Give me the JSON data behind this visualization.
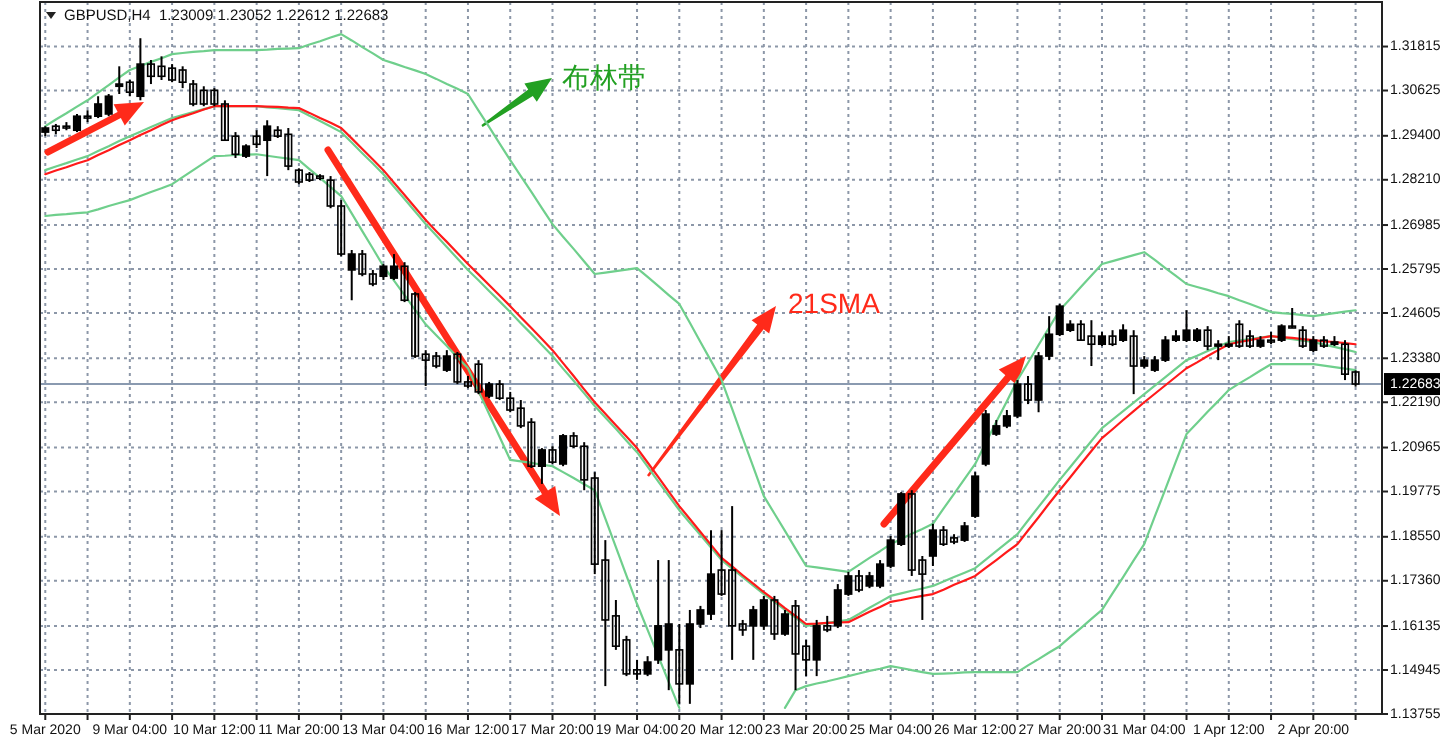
{
  "chart_data": {
    "type": "candlestick",
    "title": "GBPUSD,H4  1.23009 1.23052 1.22612 1.22683",
    "categories": [
      "5 Mar 2020",
      null,
      null,
      null,
      null,
      null,
      null,
      null,
      "9 Mar 04:00",
      null,
      null,
      null,
      null,
      null,
      null,
      null,
      "10 Mar 12:00",
      null,
      null,
      null,
      null,
      null,
      null,
      null,
      "11 Mar 20:00",
      null,
      null,
      null,
      null,
      null,
      null,
      null,
      "13 Mar 04:00",
      null,
      null,
      null,
      null,
      null,
      null,
      null,
      "16 Mar 12:00",
      null,
      null,
      null,
      null,
      null,
      null,
      null,
      "17 Mar 20:00",
      null,
      null,
      null,
      null,
      null,
      null,
      null,
      "19 Mar 04:00",
      null,
      null,
      null,
      null,
      null,
      null,
      null,
      "20 Mar 12:00",
      null,
      null,
      null,
      null,
      null,
      null,
      null,
      "23 Mar 20:00",
      null,
      null,
      null,
      null,
      null,
      null,
      null,
      "25 Mar 04:00",
      null,
      null,
      null,
      null,
      null,
      null,
      null,
      "26 Mar 12:00",
      null,
      null,
      null,
      null,
      null,
      null,
      null,
      "27 Mar 20:00",
      null,
      null,
      null,
      null,
      null,
      null,
      null,
      "31 Mar 04:00",
      null,
      null,
      null,
      null,
      null,
      null,
      null,
      "1 Apr 12:00",
      null,
      null,
      null,
      null,
      null,
      null,
      null,
      "2 Apr 20:00",
      null,
      null,
      null,
      null,
      null,
      null
    ],
    "ohlc": [
      [
        1.295,
        1.2966,
        1.2939,
        1.2961
      ],
      [
        1.2966,
        1.2972,
        1.2944,
        1.2955
      ],
      [
        1.2966,
        1.2977,
        1.2955,
        1.2961
      ],
      [
        1.2955,
        1.2999,
        1.295,
        1.2993
      ],
      [
        1.2993,
        1.3009,
        1.2977,
        1.2988
      ],
      [
        1.2993,
        1.3047,
        1.2988,
        1.3026
      ],
      [
        1.2999,
        1.3053,
        1.2993,
        1.3047
      ],
      [
        1.3074,
        1.3128,
        1.3053,
        1.308
      ],
      [
        1.3085,
        1.3091,
        1.3047,
        1.3058
      ],
      [
        1.3047,
        1.3204,
        1.3036,
        1.3134
      ],
      [
        1.3134,
        1.3145,
        1.308,
        1.3101
      ],
      [
        1.3128,
        1.3155,
        1.3091,
        1.3101
      ],
      [
        1.3123,
        1.3134,
        1.3085,
        1.3091
      ],
      [
        1.3118,
        1.3128,
        1.3069,
        1.3085
      ],
      [
        1.308,
        1.3091,
        1.302,
        1.3026
      ],
      [
        1.3063,
        1.3074,
        1.302,
        1.3026
      ],
      [
        1.3063,
        1.3069,
        1.302,
        1.3026
      ],
      [
        1.3026,
        1.3036,
        1.2928,
        1.2928
      ],
      [
        1.2939,
        1.295,
        1.288,
        1.289
      ],
      [
        1.2885,
        1.2917,
        1.288,
        1.2912
      ],
      [
        1.2939,
        1.2955,
        1.2907,
        1.2917
      ],
      [
        1.2928,
        1.2982,
        1.2831,
        1.2966
      ],
      [
        1.2955,
        1.2966,
        1.2934,
        1.2939
      ],
      [
        1.2944,
        1.2961,
        1.2847,
        1.2858
      ],
      [
        1.2847,
        1.2852,
        1.2809,
        1.2815
      ],
      [
        1.2836,
        1.2842,
        1.2815,
        1.282
      ],
      [
        1.2831,
        1.2836,
        1.282,
        1.2825
      ],
      [
        1.282,
        1.2831,
        1.2744,
        1.275
      ],
      [
        1.275,
        1.2766,
        1.2614,
        1.262
      ],
      [
        1.2577,
        1.2631,
        1.2495,
        1.262
      ],
      [
        1.262,
        1.2631,
        1.256,
        1.2566
      ],
      [
        1.2566,
        1.2577,
        1.2533,
        1.2539
      ],
      [
        1.256,
        1.2593,
        1.255,
        1.2587
      ],
      [
        1.2555,
        1.262,
        1.255,
        1.2587
      ],
      [
        1.2587,
        1.2598,
        1.249,
        1.2495
      ],
      [
        1.2512,
        1.2517,
        1.2339,
        1.2344
      ],
      [
        1.2349,
        1.236,
        1.2263,
        1.2333
      ],
      [
        1.2344,
        1.2355,
        1.2311,
        1.2317
      ],
      [
        1.2306,
        1.236,
        1.2301,
        1.2344
      ],
      [
        1.2349,
        1.2355,
        1.2268,
        1.2274
      ],
      [
        1.2274,
        1.229,
        1.2257,
        1.2263
      ],
      [
        1.2322,
        1.2333,
        1.2241,
        1.2247
      ],
      [
        1.2236,
        1.2274,
        1.223,
        1.2268
      ],
      [
        1.2268,
        1.2279,
        1.2225,
        1.223
      ],
      [
        1.223,
        1.2247,
        1.2192,
        1.2198
      ],
      [
        1.2203,
        1.2225,
        1.2149,
        1.2155
      ],
      [
        1.2165,
        1.2176,
        1.2041,
        1.2046
      ],
      [
        1.2046,
        1.2095,
        1.1998,
        1.209
      ],
      [
        1.209,
        1.21,
        1.2052,
        1.2057
      ],
      [
        1.2052,
        1.2133,
        1.2046,
        1.2128
      ],
      [
        1.2128,
        1.2138,
        1.2095,
        1.21
      ],
      [
        1.21,
        1.2111,
        1.1981,
        1.2009
      ],
      [
        1.2014,
        1.203,
        1.1754,
        1.1781
      ],
      [
        1.1792,
        1.1846,
        1.1451,
        1.163
      ],
      [
        1.1641,
        1.1684,
        1.1549,
        1.1559
      ],
      [
        1.1576,
        1.1587,
        1.1478,
        1.1484
      ],
      [
        1.1495,
        1.1522,
        1.1468,
        1.1484
      ],
      [
        1.1484,
        1.1532,
        1.1478,
        1.1516
      ],
      [
        1.1522,
        1.1792,
        1.1511,
        1.1614
      ],
      [
        1.1549,
        1.1792,
        1.144,
        1.1619
      ],
      [
        1.1549,
        1.1619,
        1.1403,
        1.1457
      ],
      [
        1.1457,
        1.1657,
        1.1403,
        1.1619
      ],
      [
        1.1619,
        1.1668,
        1.1608,
        1.1657
      ],
      [
        1.1646,
        1.1873,
        1.163,
        1.1754
      ],
      [
        1.1765,
        1.1873,
        1.1695,
        1.17
      ],
      [
        1.1765,
        1.1938,
        1.1522,
        1.1614
      ],
      [
        1.1619,
        1.163,
        1.1587,
        1.1603
      ],
      [
        1.1614,
        1.1668,
        1.1522,
        1.1657
      ],
      [
        1.1614,
        1.1695,
        1.1603,
        1.1684
      ],
      [
        1.1684,
        1.1695,
        1.1576,
        1.1592
      ],
      [
        1.1592,
        1.1657,
        1.1587,
        1.1646
      ],
      [
        1.1668,
        1.1684,
        1.144,
        1.1538
      ],
      [
        1.1559,
        1.1576,
        1.1478,
        1.1522
      ],
      [
        1.1522,
        1.163,
        1.1478,
        1.1614
      ],
      [
        1.1614,
        1.1641,
        1.1597,
        1.1603
      ],
      [
        1.1614,
        1.1727,
        1.1608,
        1.1711
      ],
      [
        1.17,
        1.176,
        1.1695,
        1.1749
      ],
      [
        1.1749,
        1.1765,
        1.1705,
        1.1711
      ],
      [
        1.1722,
        1.176,
        1.1716,
        1.1749
      ],
      [
        1.1722,
        1.1792,
        1.1716,
        1.1781
      ],
      [
        1.1776,
        1.1857,
        1.177,
        1.1846
      ],
      [
        1.1835,
        1.1976,
        1.183,
        1.1971
      ],
      [
        1.1971,
        1.1981,
        1.1749,
        1.1765
      ],
      [
        1.1792,
        1.1803,
        1.163,
        1.1754
      ],
      [
        1.1803,
        1.189,
        1.1776,
        1.1873
      ],
      [
        1.1873,
        1.1884,
        1.183,
        1.1835
      ],
      [
        1.1852,
        1.1862,
        1.1835,
        1.1841
      ],
      [
        1.1846,
        1.1895,
        1.1841,
        1.1884
      ],
      [
        1.1911,
        1.203,
        1.1906,
        1.2019
      ],
      [
        1.2052,
        1.2198,
        1.2046,
        1.2187
      ],
      [
        1.2133,
        1.2171,
        1.2128,
        1.2155
      ],
      [
        1.2155,
        1.2198,
        1.2149,
        1.2182
      ],
      [
        1.2182,
        1.2279,
        1.2176,
        1.2268
      ],
      [
        1.2268,
        1.229,
        1.2214,
        1.2225
      ],
      [
        1.2225,
        1.2355,
        1.2192,
        1.2344
      ],
      [
        1.2344,
        1.2452,
        1.2333,
        1.2403
      ],
      [
        1.2403,
        1.2485,
        1.2398,
        1.2479
      ],
      [
        1.2414,
        1.2441,
        1.2409,
        1.243
      ],
      [
        1.243,
        1.2441,
        1.2387,
        1.2387
      ],
      [
        1.2398,
        1.2441,
        1.2317,
        1.2376
      ],
      [
        1.2376,
        1.2409,
        1.2371,
        1.2398
      ],
      [
        1.2398,
        1.2414,
        1.2371,
        1.2376
      ],
      [
        1.2387,
        1.243,
        1.2382,
        1.2414
      ],
      [
        1.2398,
        1.2414,
        1.2241,
        1.2317
      ],
      [
        1.2317,
        1.2344,
        1.2311,
        1.2333
      ],
      [
        1.2306,
        1.2344,
        1.2301,
        1.2333
      ],
      [
        1.2333,
        1.2398,
        1.2328,
        1.2387
      ],
      [
        1.2387,
        1.2414,
        1.2382,
        1.2398
      ],
      [
        1.2387,
        1.2468,
        1.2382,
        1.2414
      ],
      [
        1.2387,
        1.242,
        1.2382,
        1.2414
      ],
      [
        1.2414,
        1.2425,
        1.236,
        1.2371
      ],
      [
        1.2371,
        1.2387,
        1.2333,
        1.2376
      ],
      [
        1.2371,
        1.2398,
        1.2366,
        1.2376
      ],
      [
        1.243,
        1.2441,
        1.2366,
        1.2371
      ],
      [
        1.2398,
        1.2414,
        1.2366,
        1.2371
      ],
      [
        1.2371,
        1.2398,
        1.2366,
        1.2387
      ],
      [
        1.2387,
        1.2409,
        1.2376,
        1.2382
      ],
      [
        1.2387,
        1.243,
        1.2382,
        1.2425
      ],
      [
        1.2425,
        1.2474,
        1.242,
        1.242
      ],
      [
        1.2414,
        1.2425,
        1.2366,
        1.2371
      ],
      [
        1.236,
        1.2398,
        1.2355,
        1.2387
      ],
      [
        1.2387,
        1.2398,
        1.2366,
        1.2371
      ],
      [
        1.2376,
        1.2398,
        1.2371,
        1.2382
      ],
      [
        1.2376,
        1.2387,
        1.2279,
        1.2295
      ],
      [
        1.23009,
        1.23052,
        1.22612,
        1.22683
      ],
      null,
      null
    ],
    "series": [
      {
        "type": "line",
        "color": "#6fcf8c",
        "values": [
          1.2966,
          1.2984,
          1.3001,
          1.3019,
          1.3036,
          1.3057,
          1.3077,
          1.3098,
          1.3118,
          1.3129,
          1.314,
          1.315,
          1.3161,
          1.3164,
          1.3167,
          1.3169,
          1.3172,
          1.3172,
          1.3172,
          1.3172,
          1.3172,
          1.3173,
          1.3175,
          1.3176,
          1.3177,
          1.3187,
          1.3196,
          1.3206,
          1.3215,
          1.3198,
          1.318,
          1.3163,
          1.3145,
          1.3136,
          1.3126,
          1.3117,
          1.3107,
          1.3094,
          1.308,
          1.3067,
          1.3053,
          1.3008,
          1.2964,
          1.2919,
          1.2874,
          1.2831,
          1.2788,
          1.2744,
          1.2701,
          1.2667,
          1.2634,
          1.26,
          1.2566,
          1.257,
          1.2574,
          1.2578,
          1.2582,
          1.2558,
          1.2534,
          1.2509,
          1.2485,
          1.2434,
          1.2382,
          1.2331,
          1.2279,
          1.2201,
          1.2122,
          1.2044,
          1.1965,
          1.1918,
          1.1871,
          1.1823,
          1.1776,
          1.1772,
          1.1768,
          1.1764,
          1.176,
          1.1779,
          1.1798,
          1.1816,
          1.1835,
          1.1849,
          1.1863,
          1.1876,
          1.189,
          1.1931,
          1.1971,
          1.2012,
          1.2052,
          1.2109,
          1.2166,
          1.2222,
          1.2279,
          1.2326,
          1.2374,
          1.2421,
          1.2468,
          1.2499,
          1.2531,
          1.2562,
          1.2593,
          1.2601,
          1.2609,
          1.2617,
          1.2625,
          1.2604,
          1.2582,
          1.2561,
          1.2539,
          1.2531,
          1.2523,
          1.2514,
          1.2506,
          1.2495,
          1.2485,
          1.2474,
          1.2463,
          1.246,
          1.2458,
          1.2455,
          1.2452,
          1.2456,
          1.246,
          1.2464,
          1.2468,
          null,
          null
        ]
      },
      {
        "type": "line",
        "color": "#6fcf8c",
        "values": [
          1.2847,
          1.2857,
          1.2866,
          1.2876,
          1.2885,
          1.2899,
          1.2912,
          1.2926,
          1.2939,
          1.2951,
          1.2964,
          1.2976,
          1.2988,
          1.2996,
          1.3004,
          1.3012,
          1.302,
          1.302,
          1.302,
          1.302,
          1.302,
          1.3017,
          1.3015,
          1.3012,
          1.3009,
          1.2994,
          1.298,
          1.2965,
          1.295,
          1.2922,
          1.2893,
          1.2865,
          1.2836,
          1.2802,
          1.2769,
          1.2735,
          1.2701,
          1.267,
          1.2639,
          1.2608,
          1.2577,
          1.2549,
          1.252,
          1.2492,
          1.2463,
          1.2433,
          1.2404,
          1.2374,
          1.2344,
          1.231,
          1.2277,
          1.2243,
          1.2209,
          1.2178,
          1.2147,
          1.2115,
          1.2084,
          1.2045,
          1.2005,
          1.1966,
          1.1927,
          1.1893,
          1.186,
          1.1826,
          1.1792,
          1.1769,
          1.1746,
          1.1723,
          1.17,
          1.1679,
          1.1657,
          1.1636,
          1.1614,
          1.1618,
          1.1622,
          1.1626,
          1.163,
          1.1646,
          1.1663,
          1.1679,
          1.1695,
          1.1702,
          1.1709,
          1.1715,
          1.1722,
          1.1734,
          1.1746,
          1.1758,
          1.177,
          1.1793,
          1.1816,
          1.1839,
          1.1862,
          1.1899,
          1.1936,
          1.1972,
          1.2009,
          1.2044,
          1.2079,
          1.2114,
          1.2149,
          1.2172,
          1.2195,
          1.2218,
          1.2241,
          1.2264,
          1.2287,
          1.231,
          1.2333,
          1.2345,
          1.2358,
          1.237,
          1.2382,
          1.2386,
          1.239,
          1.2394,
          1.2398,
          1.2394,
          1.239,
          1.2386,
          1.2382,
          1.2375,
          1.2369,
          1.2362,
          1.2355,
          null,
          null
        ]
      },
      {
        "type": "line",
        "color": "#6fcf8c",
        "values": [
          1.2723,
          1.2726,
          1.2728,
          1.2731,
          1.2733,
          1.2741,
          1.275,
          1.2758,
          1.2766,
          1.2777,
          1.2788,
          1.2798,
          1.2809,
          1.2828,
          1.2847,
          1.2866,
          1.2885,
          1.2886,
          1.2888,
          1.2889,
          1.289,
          1.2886,
          1.2882,
          1.2878,
          1.2874,
          1.285,
          1.2826,
          1.2801,
          1.2777,
          1.273,
          1.2682,
          1.2635,
          1.2587,
          1.2548,
          1.2509,
          1.2469,
          1.243,
          1.24,
          1.2371,
          1.2341,
          1.2311,
          1.2249,
          1.2187,
          1.2125,
          1.2063,
          1.2059,
          1.2055,
          1.205,
          1.2046,
          1.203,
          1.2014,
          1.1997,
          1.1981,
          1.1904,
          1.1827,
          1.175,
          1.1673,
          1.1603,
          1.1533,
          1.1462,
          1.1392,
          null,
          null,
          null,
          null,
          null,
          null,
          null,
          null,
          null,
          1.1392,
          1.144,
          1.1451,
          1.1458,
          1.1464,
          1.1471,
          1.1478,
          1.1485,
          1.1492,
          1.1498,
          1.1505,
          1.15,
          1.1494,
          1.1489,
          1.1484,
          1.1485,
          1.1486,
          1.1488,
          1.1489,
          1.1489,
          1.1489,
          1.1489,
          1.1489,
          1.1507,
          1.1524,
          1.1542,
          1.1559,
          1.1584,
          1.1608,
          1.1633,
          1.1657,
          1.1702,
          1.1746,
          1.1791,
          1.1835,
          1.191,
          1.1984,
          1.2059,
          1.2133,
          1.2163,
          1.2193,
          1.2222,
          1.2252,
          1.227,
          1.2287,
          1.2305,
          1.2322,
          1.2322,
          1.2322,
          1.2322,
          1.2322,
          1.2318,
          1.2314,
          1.231,
          1.2306,
          null,
          null
        ]
      },
      {
        "type": "line",
        "color": "#ff1a1a",
        "values": [
          1.2836,
          1.2846,
          1.2855,
          1.2865,
          1.2874,
          1.2888,
          1.2901,
          1.2915,
          1.2928,
          1.2942,
          1.2955,
          1.2969,
          1.2982,
          1.2992,
          1.3001,
          1.3011,
          1.302,
          1.302,
          1.302,
          1.302,
          1.302,
          1.3019,
          1.3018,
          1.3016,
          1.3015,
          1.3002,
          1.2988,
          1.2975,
          1.2961,
          1.2933,
          1.2904,
          1.2876,
          1.2847,
          1.2813,
          1.278,
          1.2746,
          1.2712,
          1.2682,
          1.2653,
          1.2623,
          1.2593,
          1.2565,
          1.2536,
          1.2508,
          1.2479,
          1.2449,
          1.242,
          1.239,
          1.236,
          1.2325,
          1.229,
          1.2254,
          1.2219,
          1.2188,
          1.2157,
          1.2126,
          1.2095,
          1.2056,
          1.2017,
          1.1977,
          1.1938,
          1.1903,
          1.1868,
          1.1833,
          1.1798,
          1.1775,
          1.1751,
          1.1728,
          1.1705,
          1.1684,
          1.1662,
          1.1641,
          1.1619,
          1.162,
          1.1622,
          1.1623,
          1.1624,
          1.1638,
          1.1652,
          1.1665,
          1.1679,
          1.1684,
          1.169,
          1.1695,
          1.17,
          1.1712,
          1.1725,
          1.1737,
          1.1749,
          1.1771,
          1.1792,
          1.1814,
          1.1835,
          1.1872,
          1.1908,
          1.1945,
          1.1981,
          1.2016,
          1.2052,
          1.2087,
          1.2122,
          1.2146,
          1.2171,
          1.2195,
          1.2219,
          1.2242,
          1.2265,
          1.2288,
          1.2311,
          1.2327,
          1.2344,
          1.236,
          1.2376,
          1.2382,
          1.2387,
          1.2393,
          1.2398,
          1.2395,
          1.2393,
          1.239,
          1.2387,
          1.2384,
          1.2382,
          1.2379,
          1.2376,
          null,
          null
        ]
      }
    ],
    "ylim": [
      1.13755,
      1.3302
    ],
    "yticks": [
      1.31815,
      1.30625,
      {
        "value": 1.294,
        "label": "1.29400"
      },
      {
        "value": 1.2821,
        "label": "1.28210"
      },
      1.26985,
      1.25795,
      1.24605,
      {
        "value": 1.2338,
        "label": "1.23380"
      },
      {
        "value": 1.2219,
        "label": "1.22190"
      },
      1.20965,
      1.19775,
      {
        "value": 1.1855,
        "label": "1.18550"
      },
      {
        "value": 1.1736,
        "label": "1.17360"
      },
      1.16135,
      1.14945,
      1.13755
    ],
    "grid": true,
    "ref_lines": [
      {
        "axis": "y",
        "value": 1.22683,
        "label": "1.22683",
        "color": "#8a9ab0"
      }
    ],
    "annotations": [
      "布林带",
      "21SMA"
    ]
  }
}
